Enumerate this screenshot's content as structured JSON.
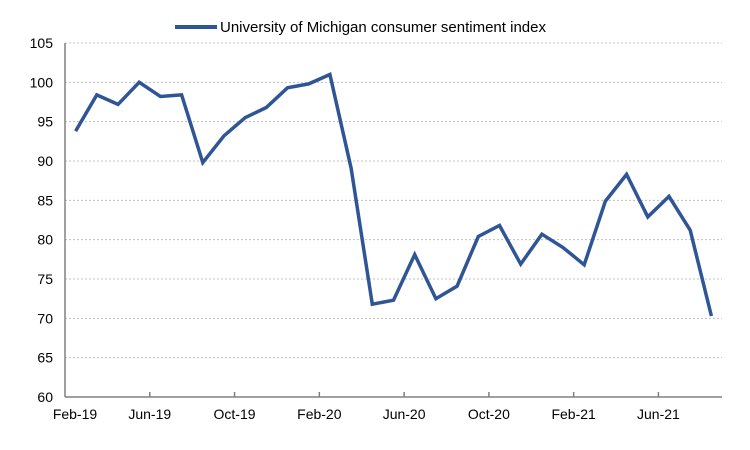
{
  "chart_data": {
    "type": "line",
    "title": "",
    "xlabel": "",
    "ylabel": "",
    "ylim": [
      60,
      105
    ],
    "yticks": [
      60,
      65,
      70,
      75,
      80,
      85,
      90,
      95,
      100,
      105
    ],
    "grid": true,
    "legend_position": "top-center",
    "x": [
      "Feb-19",
      "Mar-19",
      "Apr-19",
      "May-19",
      "Jun-19",
      "Jul-19",
      "Aug-19",
      "Sep-19",
      "Oct-19",
      "Nov-19",
      "Dec-19",
      "Jan-20",
      "Feb-20",
      "Mar-20",
      "Apr-20",
      "May-20",
      "Jun-20",
      "Jul-20",
      "Aug-20",
      "Sep-20",
      "Oct-20",
      "Nov-20",
      "Dec-20",
      "Jan-21",
      "Feb-21",
      "Mar-21",
      "Apr-21",
      "May-21",
      "Jun-21",
      "Jul-21",
      "Aug-21"
    ],
    "xtick_labels": [
      "Feb-19",
      "Jun-19",
      "Oct-19",
      "Feb-20",
      "Jun-20",
      "Oct-20",
      "Feb-21",
      "Jun-21"
    ],
    "series": [
      {
        "name": "University of Michigan consumer sentiment index",
        "color": "#2F5597",
        "values": [
          93.8,
          98.4,
          97.2,
          100.0,
          98.2,
          98.4,
          89.8,
          93.2,
          95.5,
          96.8,
          99.3,
          99.8,
          101.0,
          89.1,
          71.8,
          72.3,
          78.1,
          72.5,
          74.1,
          80.4,
          81.8,
          76.9,
          80.7,
          79.0,
          76.8,
          84.9,
          88.3,
          82.9,
          85.5,
          81.2,
          70.3
        ]
      }
    ]
  }
}
